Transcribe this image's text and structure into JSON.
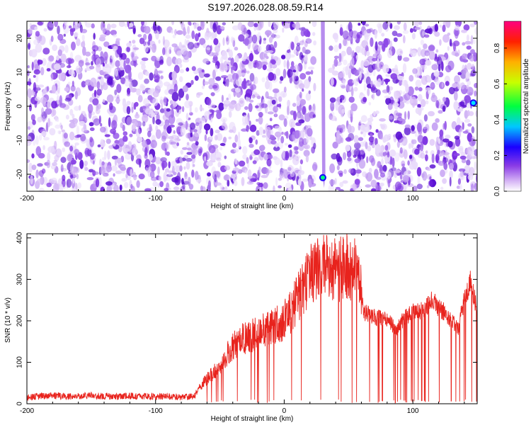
{
  "title": "S197.2026.028.08.59.R14",
  "chart_data": [
    {
      "type": "heatmap",
      "xlabel": "Height of straight line (km)",
      "ylabel": "Frequency (Hz)",
      "xlim": [
        -200,
        150
      ],
      "ylim": [
        -25,
        25
      ],
      "x_ticks": [
        -200,
        -100,
        0,
        100
      ],
      "y_ticks": [
        -20,
        -10,
        0,
        10,
        20
      ],
      "colorbar": {
        "label": "Normalized spectral amplitude",
        "range": [
          0,
          0.95
        ],
        "ticks": [
          0,
          0.2,
          0.4,
          0.6,
          0.8
        ],
        "tick_labels": [
          "0.0",
          "0.2",
          "0.4",
          "0.6",
          "0.8"
        ],
        "colors": [
          "#ffffff",
          "#c9a0f0",
          "#7b2be0",
          "#0000ff",
          "#00e0ff",
          "#00ff00",
          "#ffff00",
          "#ff9900",
          "#ff0000",
          "#ff007f"
        ]
      },
      "features": [
        {
          "x": 30,
          "y": -21,
          "value": 0.3
        },
        {
          "x": 147,
          "y": 1,
          "value": 0.5
        }
      ],
      "gap_x_range": [
        24,
        36
      ]
    },
    {
      "type": "line",
      "xlabel": "Height of straight line (km)",
      "ylabel": "SNR (10 * v/v)",
      "xlim": [
        -200,
        150
      ],
      "ylim": [
        0,
        410
      ],
      "x_ticks": [
        -200,
        -100,
        0,
        100
      ],
      "y_ticks": [
        0,
        100,
        200,
        300,
        400
      ],
      "color": "#e8231d",
      "series": [
        {
          "name": "SNR",
          "x": [
            -200,
            -190,
            -180,
            -170,
            -160,
            -150,
            -140,
            -130,
            -120,
            -110,
            -100,
            -90,
            -80,
            -70,
            -66,
            -60,
            -50,
            -40,
            -30,
            -20,
            -10,
            0,
            10,
            20,
            30,
            40,
            50,
            58,
            62,
            70,
            80,
            88,
            92,
            95,
            100,
            110,
            115,
            120,
            125,
            130,
            135,
            140,
            145,
            150
          ],
          "values": [
            15,
            18,
            20,
            17,
            18,
            20,
            18,
            17,
            19,
            18,
            17,
            18,
            16,
            17,
            40,
            60,
            90,
            140,
            160,
            170,
            190,
            200,
            250,
            310,
            330,
            320,
            330,
            320,
            220,
            210,
            200,
            180,
            200,
            210,
            220,
            230,
            250,
            230,
            220,
            200,
            180,
            250,
            300,
            220
          ]
        }
      ]
    }
  ]
}
